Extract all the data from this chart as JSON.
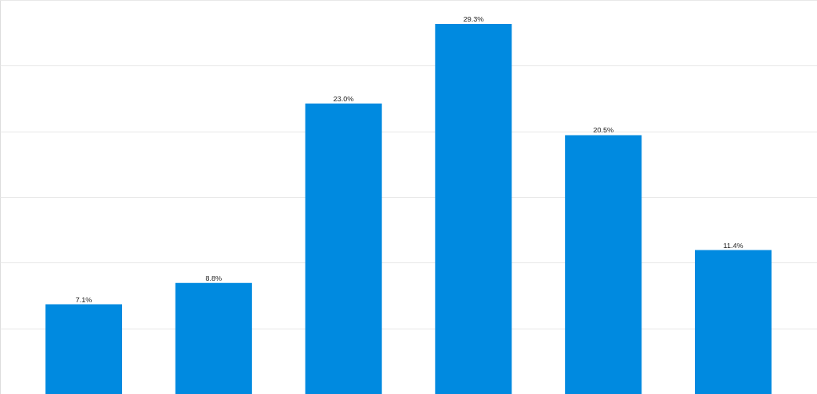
{
  "chart_data": {
    "type": "bar",
    "categories": [
      null,
      null,
      null,
      null,
      null,
      null
    ],
    "values": [
      7.1,
      8.8,
      23.0,
      29.3,
      20.5,
      11.4
    ],
    "value_labels": [
      "7.1%",
      "8.8%",
      "23.0%",
      "29.3%",
      "20.5%",
      "11.4%"
    ],
    "color": "#008ae0",
    "ylim": [
      0,
      31.2
    ],
    "yticks": [
      {
        "value": 0,
        "label": null
      },
      {
        "value": 5.2,
        "label": null
      },
      {
        "value": 10.4,
        "label": null
      },
      {
        "value": 15.6,
        "label": null
      },
      {
        "value": 20.8,
        "label": null
      },
      {
        "value": 26.0,
        "label": null
      },
      {
        "value": 31.2,
        "label": null
      }
    ],
    "grid": "y",
    "tick_labels": false
  }
}
